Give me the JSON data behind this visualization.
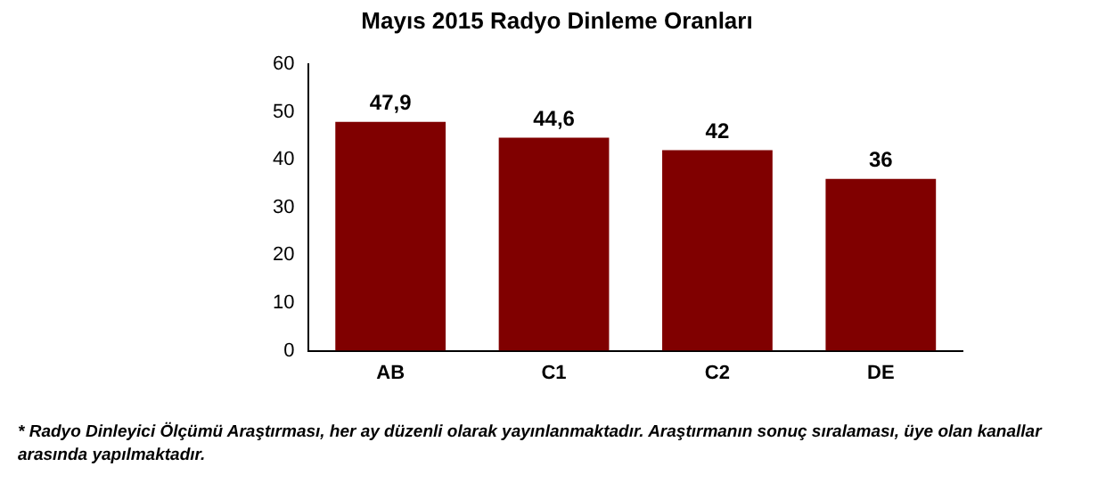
{
  "chart_data": {
    "type": "bar",
    "title": "Mayıs 2015 Radyo Dinleme Oranları",
    "categories": [
      "AB",
      "C1",
      "C2",
      "DE"
    ],
    "values": [
      47.9,
      44.6,
      42,
      36
    ],
    "value_labels": [
      "47,9",
      "44,6",
      "42",
      "36"
    ],
    "color": "#800000",
    "ylim": [
      0,
      60
    ],
    "yticks": [
      0,
      10,
      20,
      30,
      40,
      50,
      60
    ],
    "grid": false,
    "legend": false,
    "annotations": [
      "* Radyo Dinleyici Ölçümü Araştırması, her ay düzenli olarak yayınlanmaktadır. Araştırmanın sonuç sıralaması, üye olan kanallar arasında yapılmaktadır."
    ]
  }
}
